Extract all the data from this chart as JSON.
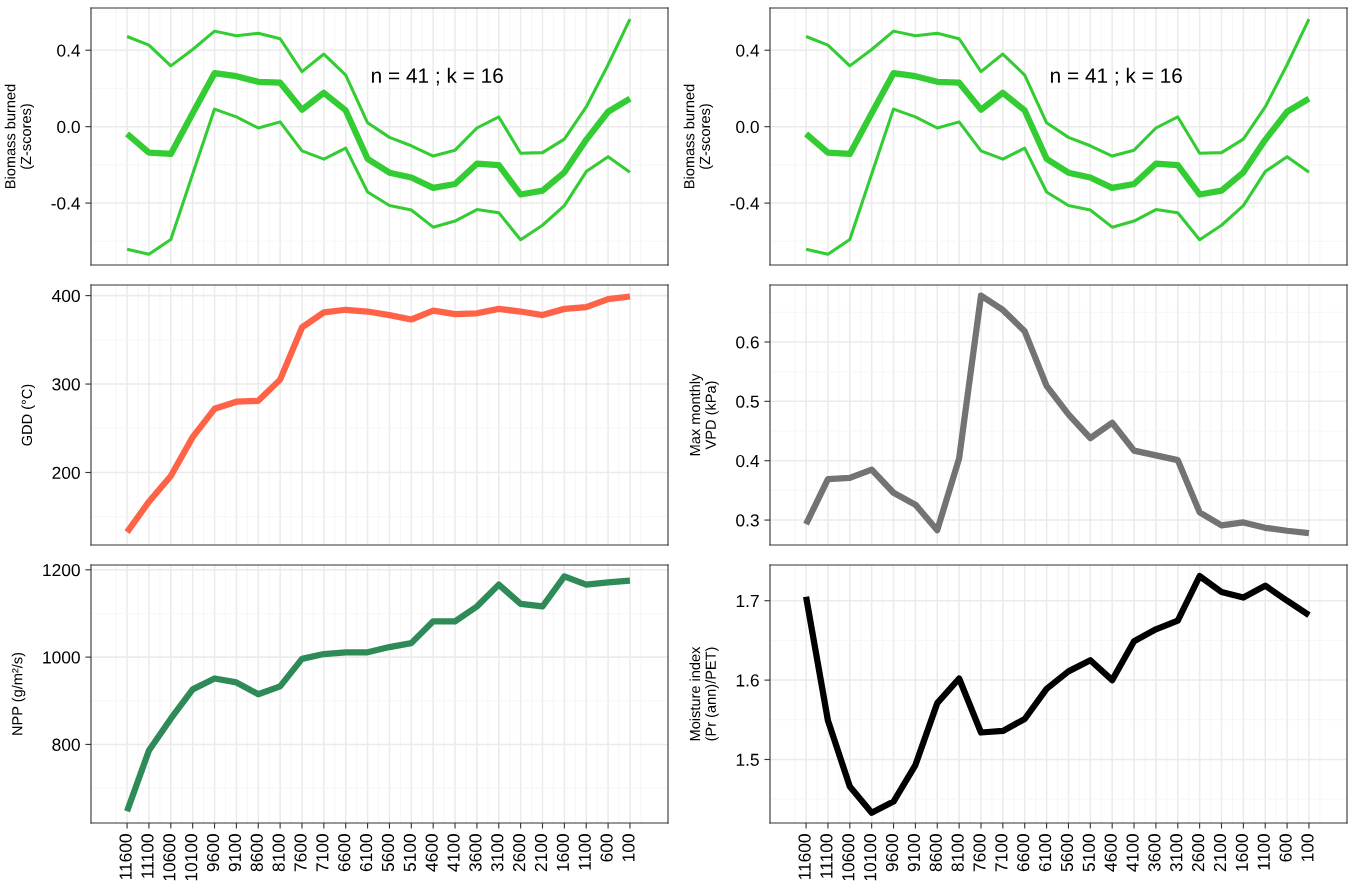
{
  "chart_data": [
    {
      "type": "line",
      "ylabel": "Biomass burned\n(Z-scores)",
      "annotations": [
        "n = 41 ; k = 16"
      ],
      "categories": [
        "11600",
        "11100",
        "10600",
        "10100",
        "9600",
        "9100",
        "8600",
        "8100",
        "7600",
        "7100",
        "6600",
        "6100",
        "5600",
        "5100",
        "4600",
        "4100",
        "3600",
        "3100",
        "2600",
        "2100",
        "1600",
        "1100",
        "600",
        "100"
      ],
      "ylim": [
        -0.724,
        0.621
      ],
      "yticks": [
        {
          "value": -0.4,
          "label": "-0.4"
        },
        {
          "value": 0,
          "label": "0.0"
        },
        {
          "value": 0.4,
          "label": "0.4"
        }
      ],
      "grid": true,
      "tick_labels": "y",
      "series": [
        {
          "color": "#33cc33",
          "values": [
            -0.038,
            -0.136,
            -0.143,
            0.07,
            0.28,
            0.264,
            0.235,
            0.23,
            0.089,
            0.177,
            0.085,
            -0.168,
            -0.241,
            -0.266,
            -0.32,
            -0.3,
            -0.194,
            -0.201,
            -0.355,
            -0.335,
            -0.239,
            -0.069,
            0.078,
            0.147
          ]
        },
        {
          "color": "#33cc33",
          "values": [
            0.472,
            0.427,
            0.318,
            0.404,
            0.5,
            0.476,
            0.489,
            0.46,
            0.288,
            0.38,
            0.27,
            0.02,
            -0.056,
            -0.1,
            -0.154,
            -0.123,
            -0.007,
            0.051,
            -0.139,
            -0.136,
            -0.065,
            0.103,
            0.324,
            0.563
          ]
        },
        {
          "color": "#33cc33",
          "values": [
            -0.641,
            -0.668,
            -0.59,
            -0.248,
            0.092,
            0.051,
            -0.007,
            0.025,
            -0.127,
            -0.17,
            -0.112,
            -0.342,
            -0.413,
            -0.436,
            -0.526,
            -0.494,
            -0.434,
            -0.451,
            -0.592,
            -0.516,
            -0.413,
            -0.235,
            -0.157,
            -0.239
          ]
        }
      ]
    },
    {
      "type": "line",
      "ylabel": "Biomass burned\n(Z-scores)",
      "annotations": [
        "n = 41 ; k = 16"
      ],
      "categories": [
        "11600",
        "11100",
        "10600",
        "10100",
        "9600",
        "9100",
        "8600",
        "8100",
        "7600",
        "7100",
        "6600",
        "6100",
        "5600",
        "5100",
        "4600",
        "4100",
        "3600",
        "3100",
        "2600",
        "2100",
        "1600",
        "1100",
        "600",
        "100"
      ],
      "ylim": [
        -0.724,
        0.621
      ],
      "yticks": [
        {
          "value": -0.4,
          "label": "-0.4"
        },
        {
          "value": 0,
          "label": "0.0"
        },
        {
          "value": 0.4,
          "label": "0.4"
        }
      ],
      "grid": true,
      "tick_labels": "y",
      "series": [
        {
          "color": "#33cc33",
          "values": [
            -0.038,
            -0.136,
            -0.143,
            0.07,
            0.28,
            0.264,
            0.235,
            0.23,
            0.089,
            0.177,
            0.085,
            -0.168,
            -0.241,
            -0.266,
            -0.32,
            -0.3,
            -0.194,
            -0.201,
            -0.355,
            -0.335,
            -0.239,
            -0.069,
            0.078,
            0.147
          ]
        },
        {
          "color": "#33cc33",
          "values": [
            0.472,
            0.427,
            0.318,
            0.404,
            0.5,
            0.476,
            0.489,
            0.46,
            0.288,
            0.38,
            0.27,
            0.02,
            -0.056,
            -0.1,
            -0.154,
            -0.123,
            -0.007,
            0.051,
            -0.139,
            -0.136,
            -0.065,
            0.103,
            0.324,
            0.563
          ]
        },
        {
          "color": "#33cc33",
          "values": [
            -0.641,
            -0.668,
            -0.59,
            -0.248,
            0.092,
            0.051,
            -0.007,
            0.025,
            -0.127,
            -0.17,
            -0.112,
            -0.342,
            -0.413,
            -0.436,
            -0.526,
            -0.494,
            -0.434,
            -0.451,
            -0.592,
            -0.516,
            -0.413,
            -0.235,
            -0.157,
            -0.239
          ]
        }
      ]
    },
    {
      "type": "line",
      "ylabel": "GDD (°C)",
      "categories": [
        "11600",
        "11100",
        "10600",
        "10100",
        "9600",
        "9100",
        "8600",
        "8100",
        "7600",
        "7100",
        "6600",
        "6100",
        "5600",
        "5100",
        "4600",
        "4100",
        "3600",
        "3100",
        "2600",
        "2100",
        "1600",
        "1100",
        "600",
        "100"
      ],
      "ylim": [
        118,
        412
      ],
      "yticks": [
        200,
        300,
        400
      ],
      "grid": true,
      "tick_labels": "y",
      "series": [
        {
          "color": "#ff6347",
          "values": [
            132.5,
            167,
            196,
            240,
            272,
            280,
            281,
            305,
            364,
            381,
            384,
            382,
            378,
            373,
            383,
            379,
            380,
            385,
            382,
            378,
            385,
            387,
            396,
            399
          ]
        }
      ]
    },
    {
      "type": "line",
      "ylabel": "Max monthly\nVPD (kPa)",
      "categories": [
        "11600",
        "11100",
        "10600",
        "10100",
        "9600",
        "9100",
        "8600",
        "8100",
        "7600",
        "7100",
        "6600",
        "6100",
        "5600",
        "5100",
        "4600",
        "4100",
        "3600",
        "3100",
        "2600",
        "2100",
        "1600",
        "1100",
        "600",
        "100"
      ],
      "ylim": [
        0.258,
        0.696
      ],
      "yticks": [
        0.3,
        0.4,
        0.5,
        0.6
      ],
      "grid": true,
      "tick_labels": "y",
      "series": [
        {
          "color": "#737373",
          "values": [
            0.293,
            0.369,
            0.371,
            0.385,
            0.346,
            0.326,
            0.283,
            0.404,
            0.678,
            0.654,
            0.618,
            0.526,
            0.478,
            0.438,
            0.464,
            0.417,
            0.409,
            0.401,
            0.313,
            0.291,
            0.296,
            0.287,
            0.282,
            0.278
          ]
        }
      ]
    },
    {
      "type": "line",
      "ylabel": "NPP (g/m²/s)",
      "categories": [
        "11600",
        "11100",
        "10600",
        "10100",
        "9600",
        "9100",
        "8600",
        "8100",
        "7600",
        "7100",
        "6600",
        "6100",
        "5600",
        "5100",
        "4600",
        "4100",
        "3600",
        "3100",
        "2600",
        "2100",
        "1600",
        "1100",
        "600",
        "100"
      ],
      "ylim": [
        620,
        1211
      ],
      "yticks": [
        800,
        1000,
        1200
      ],
      "grid": true,
      "series": [
        {
          "color": "#2e8b57",
          "values": [
            647,
            786,
            859,
            926,
            951,
            942,
            915,
            933,
            996,
            1007,
            1011,
            1011,
            1023,
            1032,
            1082,
            1082,
            1116,
            1166,
            1122,
            1116,
            1185,
            1166,
            1171,
            1175
          ]
        }
      ]
    },
    {
      "type": "line",
      "ylabel": "Moisture index\n(Pr (ann)/PET)",
      "categories": [
        "11600",
        "11100",
        "10600",
        "10100",
        "9600",
        "9100",
        "8600",
        "8100",
        "7600",
        "7100",
        "6600",
        "6100",
        "5600",
        "5100",
        "4600",
        "4100",
        "3600",
        "3100",
        "2600",
        "2100",
        "1600",
        "1100",
        "600",
        "100"
      ],
      "ylim": [
        1.42,
        1.745
      ],
      "yticks": [
        1.5,
        1.6,
        1.7
      ],
      "grid": true,
      "series": [
        {
          "color": "#000000",
          "values": [
            1.705,
            1.549,
            1.466,
            1.433,
            1.447,
            1.493,
            1.571,
            1.602,
            1.534,
            1.536,
            1.551,
            1.589,
            1.611,
            1.625,
            1.6,
            1.649,
            1.664,
            1.675,
            1.731,
            1.711,
            1.704,
            1.719,
            1.7,
            1.682
          ]
        }
      ]
    }
  ]
}
